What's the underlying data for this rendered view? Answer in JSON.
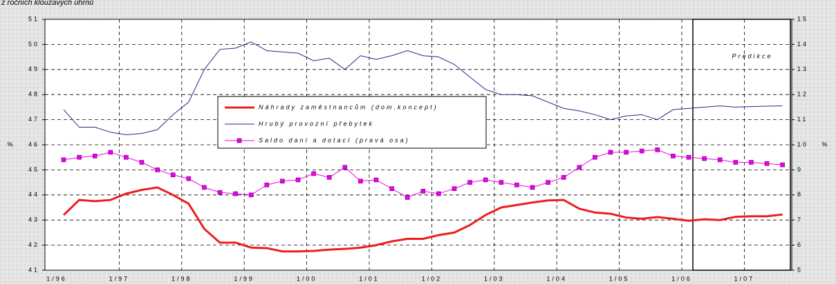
{
  "chart_data": {
    "type": "line",
    "subtitle": "z ročních klouzavých úhrnů",
    "annotation": "Predikce",
    "ylabel": "%",
    "y2label": "%",
    "categories": [
      "1/96",
      null,
      null,
      null,
      "1/97",
      null,
      null,
      null,
      "1/98",
      null,
      null,
      null,
      "1/99",
      null,
      null,
      null,
      "1/00",
      null,
      null,
      null,
      "1/01",
      null,
      null,
      null,
      "1/02",
      null,
      null,
      null,
      "1/03",
      null,
      null,
      null,
      "1/04",
      null,
      null,
      null,
      "1/05",
      null,
      null,
      null,
      "1/06",
      null,
      null,
      null,
      "1/07",
      null,
      null
    ],
    "ylim": [
      41,
      51
    ],
    "yticks": [
      41,
      42,
      43,
      44,
      45,
      46,
      47,
      48,
      49,
      50,
      51
    ],
    "y2lim": [
      5,
      15
    ],
    "y2ticks": [
      5,
      6,
      7,
      8,
      9,
      10,
      11,
      12,
      13,
      14,
      15
    ],
    "grid": true,
    "series": [
      {
        "name": "Náhrady zaměstnancům (dom.koncept)",
        "color": "#ee1c1c",
        "values": [
          43.2,
          43.8,
          43.75,
          43.8,
          44.05,
          44.2,
          44.3,
          44.0,
          43.65,
          42.65,
          42.1,
          42.1,
          41.9,
          41.88,
          41.75,
          41.75,
          41.77,
          41.82,
          41.85,
          41.9,
          42.0,
          42.15,
          42.25,
          42.25,
          42.4,
          42.5,
          42.8,
          43.2,
          43.5,
          43.6,
          43.7,
          43.78,
          43.8,
          43.45,
          43.3,
          43.25,
          43.1,
          43.05,
          43.12,
          43.05,
          42.97,
          43.03,
          43.0,
          43.13,
          43.15,
          43.15,
          43.22
        ]
      },
      {
        "name": "Hrubý provozní přebytek",
        "color": "#1f2a8a",
        "values": [
          47.4,
          46.7,
          46.7,
          46.5,
          46.4,
          46.45,
          46.6,
          47.2,
          47.7,
          49.0,
          49.8,
          49.85,
          50.1,
          49.75,
          49.7,
          49.65,
          49.35,
          49.45,
          49.0,
          49.55,
          49.4,
          49.55,
          49.75,
          49.55,
          49.5,
          49.2,
          48.7,
          48.2,
          48.0,
          48.0,
          47.95,
          47.7,
          47.45,
          47.35,
          47.2,
          47.0,
          47.15,
          47.2,
          47.0,
          47.4,
          47.45,
          47.5,
          47.55,
          47.5,
          47.52,
          47.54,
          47.55
        ]
      },
      {
        "name": "Saldo daní a dotací (pravá osa)",
        "color": "#ee00ee",
        "axis": "y2",
        "values": [
          9.4,
          9.5,
          9.55,
          9.7,
          9.5,
          9.3,
          9.0,
          8.8,
          8.65,
          8.3,
          8.1,
          8.05,
          8.0,
          8.4,
          8.55,
          8.6,
          8.85,
          8.7,
          9.1,
          8.55,
          8.6,
          8.25,
          7.9,
          8.15,
          8.05,
          8.25,
          8.5,
          8.6,
          8.5,
          8.4,
          8.3,
          8.5,
          8.7,
          9.1,
          9.5,
          9.7,
          9.7,
          9.75,
          9.8,
          9.55,
          9.5,
          9.45,
          9.4,
          9.3,
          9.3,
          9.25,
          9.2
        ]
      }
    ]
  }
}
